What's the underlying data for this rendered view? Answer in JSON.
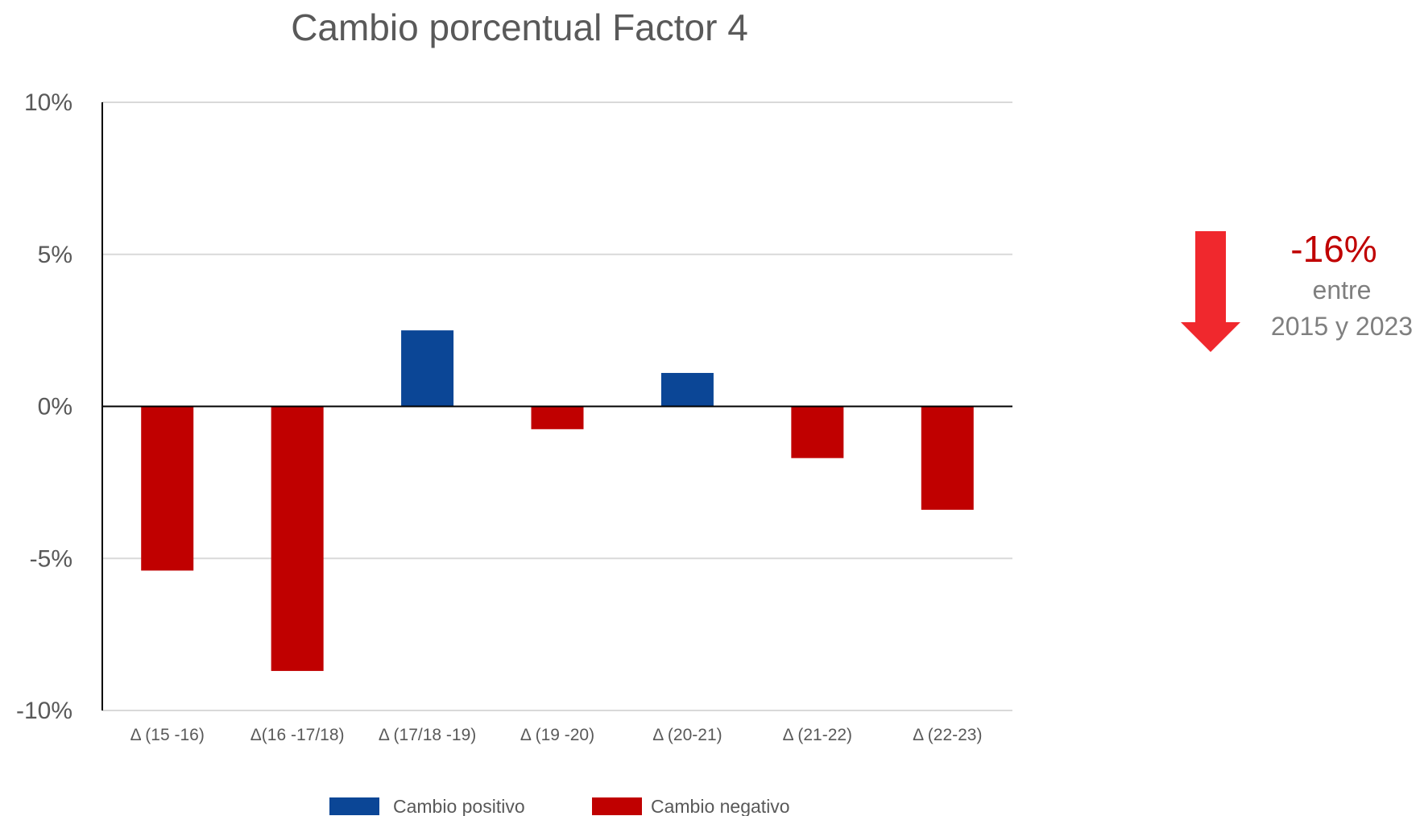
{
  "chart_data": {
    "type": "bar",
    "title": "Cambio porcentual Factor 4",
    "xlabel": "",
    "ylabel": "",
    "ylim": [
      -10,
      10
    ],
    "yticks": [
      10,
      5,
      0,
      -5,
      -10
    ],
    "ytick_labels": [
      "10%",
      "5%",
      "0%",
      "-5%",
      "-10%"
    ],
    "categories": [
      "Δ (15 -16)",
      "Δ(16 -17/18)",
      "Δ (17/18 -19)",
      "Δ (19 -20)",
      "Δ (20-21)",
      "Δ (21-22)",
      "Δ (22-23)"
    ],
    "values": [
      -5.4,
      -8.7,
      2.5,
      -0.75,
      1.1,
      -1.7,
      -3.4
    ],
    "grid": true,
    "legend": {
      "position": "bottom",
      "entries": [
        {
          "label": "Cambio positivo",
          "color": "#0b4696"
        },
        {
          "label": "Cambio negativo",
          "color": "#c00000"
        }
      ]
    },
    "colors": {
      "positive": "#0b4696",
      "negative": "#c00000",
      "arrow": "#f0282d"
    }
  },
  "callout": {
    "value": "-16%",
    "value_color": "#c00000",
    "line1": "entre",
    "line2": "2015 y 2023",
    "icon": "down-arrow-icon"
  }
}
